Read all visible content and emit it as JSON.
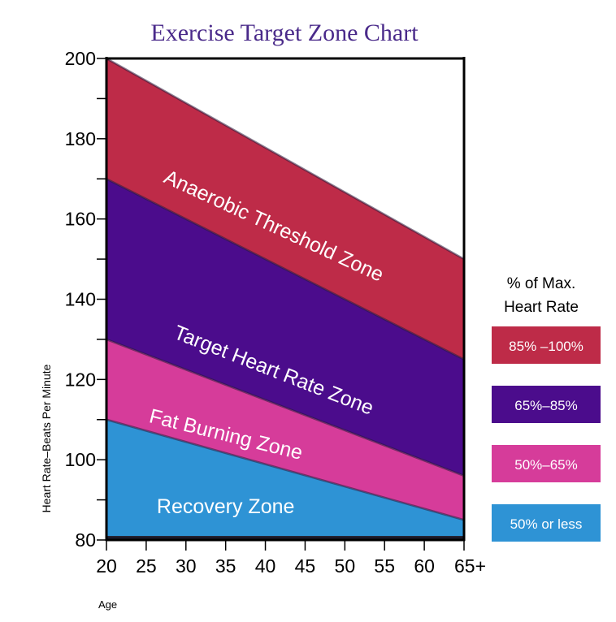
{
  "chart_data": {
    "type": "area",
    "title": "Exercise Target Zone Chart",
    "xlabel": "Age",
    "ylabel": "Heart Rate–Beats Per Minute",
    "xlim": [
      20,
      65
    ],
    "ylim": [
      80,
      200
    ],
    "x_ticks": [
      {
        "value": 20,
        "label": "20"
      },
      {
        "value": 25,
        "label": "25"
      },
      {
        "value": 30,
        "label": "30"
      },
      {
        "value": 35,
        "label": "35"
      },
      {
        "value": 40,
        "label": "40"
      },
      {
        "value": 45,
        "label": "45"
      },
      {
        "value": 50,
        "label": "50"
      },
      {
        "value": 55,
        "label": "55"
      },
      {
        "value": 60,
        "label": "60"
      },
      {
        "value": 65,
        "label": "65+"
      }
    ],
    "y_ticks": [
      {
        "value": 80,
        "label": "80"
      },
      {
        "value": 100,
        "label": "100"
      },
      {
        "value": 120,
        "label": "120"
      },
      {
        "value": 140,
        "label": "140"
      },
      {
        "value": 160,
        "label": "160"
      },
      {
        "value": 180,
        "label": "180"
      },
      {
        "value": 200,
        "label": "200"
      }
    ],
    "y_minor_step": 10,
    "x": [
      20,
      65
    ],
    "series": [
      {
        "name": "Anaerobic Threshold Zone",
        "legend": "85% –100%",
        "color": "#BE2B48",
        "upper": [
          200,
          150
        ],
        "lower": [
          170,
          125
        ],
        "label_age": 41,
        "label_hr": 158,
        "label_angle": 24.8
      },
      {
        "name": "Target Heart Rate Zone",
        "legend": "65%–85%",
        "color": "#4B0C8C",
        "upper": [
          170,
          125
        ],
        "lower": [
          130,
          96
        ],
        "label_age": 41,
        "label_hr": 122,
        "label_angle": 21.4
      },
      {
        "name": "Fat Burning Zone",
        "legend": "50%–65%",
        "color": "#D63C9A",
        "upper": [
          130,
          96
        ],
        "lower": [
          110,
          85
        ],
        "label_age": 35,
        "label_hr": 106,
        "label_angle": 13.9
      },
      {
        "name": "Recovery Zone",
        "legend": "50% or less",
        "color": "#2E93D5",
        "upper": [
          110,
          85
        ],
        "lower": [
          81,
          81
        ],
        "label_age": 35,
        "label_hr": 88,
        "label_angle": 0
      }
    ],
    "legend_title": [
      "% of Max.",
      "Heart Rate"
    ],
    "legend_position": "right"
  }
}
